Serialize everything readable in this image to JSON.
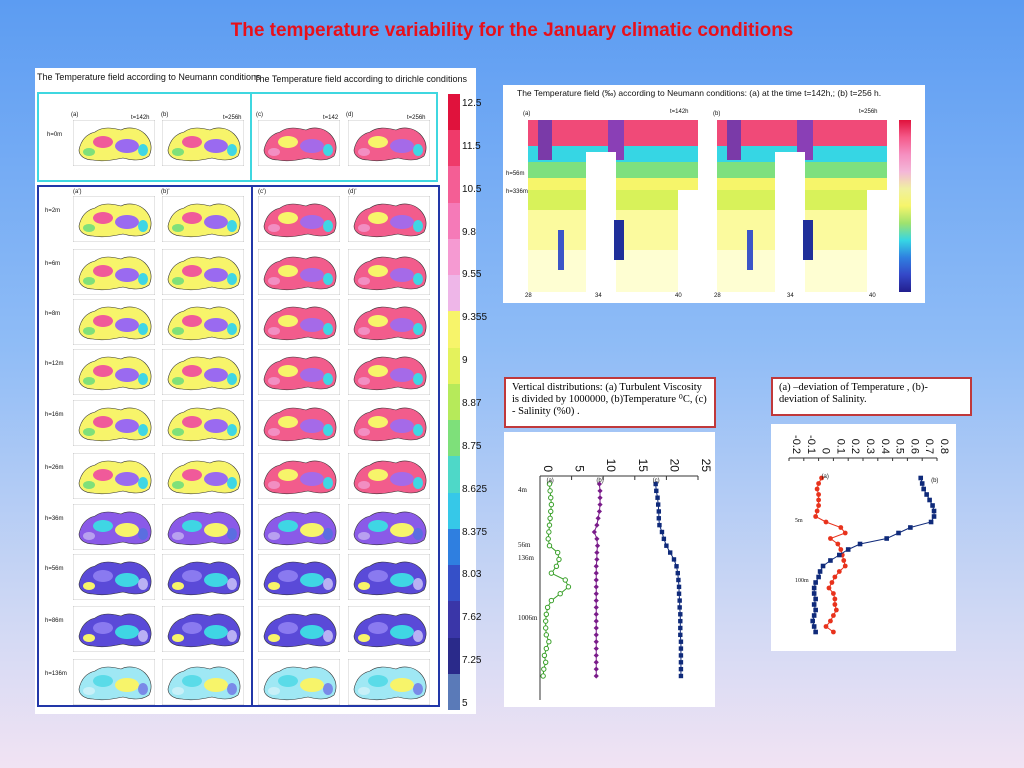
{
  "slide": {
    "title": "The temperature variability for  the January climatic conditions"
  },
  "left_figure": {
    "header_neumann": "The Temperature  field  according to Neumann conditions",
    "header_dirichle": "The Temperature  field according to dirichle  conditions",
    "time_142": "t=142h",
    "time_256": "t=256h",
    "time_142_short": "t=142",
    "panel_letters_top": [
      "(a)",
      "(b)",
      "(c)",
      "(d)"
    ],
    "panel_letters_lower": [
      "(a')",
      "(b)'",
      "(c')",
      "(d)'"
    ],
    "depths": [
      "h=0m",
      "h=2m",
      "h=6m",
      "h=8m",
      "h=12m",
      "h=16m",
      "h=26m",
      "h=36m",
      "h=56m",
      "h=86m",
      "h=136m"
    ],
    "colorbar_ticks": [
      "12.5",
      "11.5",
      "10.5",
      "9.8",
      "9.55",
      "9.355",
      "9",
      "8.87",
      "8.75",
      "8.625",
      "8.375",
      "8.03",
      "7.62",
      "7.25",
      "5"
    ]
  },
  "right_top_figure": {
    "title": "The Temperature  field (‰)  according to Neumann  conditions:  (a) at the time t=142h,; (b) t=256 h.",
    "label_a": "(a)",
    "label_b": "(b)",
    "time_a": "t=142h",
    "time_b": "t=256h",
    "depth_labels": [
      "h=56m",
      "h=336m"
    ],
    "x_ticks": [
      "28",
      "34",
      "40"
    ]
  },
  "caption_vertical": "Vertical distributions: (a) Turbulent Viscosity   is divided by 1000000, (b)Temperature ⁰C,  (c) -  Salinity (%0) .",
  "caption_deviation": "(a) –deviation of Temperature , (b)-deviation of Salinity.",
  "vertical_chart": {
    "x_ticks": [
      "0",
      "5",
      "10",
      "15",
      "20",
      "25"
    ],
    "series_labels": [
      "(a)",
      "(b)",
      "(c)"
    ],
    "depth_labels": [
      "4m",
      "56m",
      "136m",
      "1006m"
    ]
  },
  "deviation_chart": {
    "x_ticks": [
      "-0.2",
      "-0.1",
      "0",
      "0.1",
      "0.2",
      "0.3",
      "0.4",
      "0.5",
      "0.6",
      "0.7",
      "0.8"
    ],
    "series_labels": [
      "(a)",
      "(b)"
    ],
    "depth_labels": [
      "5m",
      "100m"
    ]
  },
  "chart_data": [
    {
      "type": "line",
      "title": "",
      "xlabel": "",
      "ylabel": "",
      "xlim": [
        0,
        25
      ],
      "orientation": "vertical-profile",
      "depth_index": [
        0,
        1,
        2,
        3,
        4,
        5,
        6,
        7,
        8,
        9,
        10,
        11,
        12,
        13,
        14,
        15,
        16,
        17,
        18,
        19,
        20,
        21,
        22,
        23,
        24,
        25,
        26,
        27,
        28
      ],
      "series": [
        {
          "name": "(a)",
          "color": "#3aa02a",
          "values": [
            1.5,
            1.6,
            1.7,
            1.8,
            1.7,
            1.6,
            1.5,
            1.4,
            1.3,
            1.5,
            2.8,
            3.0,
            2.6,
            1.8,
            4.0,
            4.5,
            3.2,
            1.8,
            1.2,
            1.0,
            0.9,
            0.9,
            1.0,
            1.4,
            1.0,
            0.7,
            0.9,
            0.6,
            0.5
          ]
        },
        {
          "name": "(b)",
          "color": "#7a1c8a",
          "values": [
            9.4,
            9.5,
            9.5,
            9.5,
            9.4,
            9.2,
            9.0,
            8.6,
            9.0,
            9.1,
            9.0,
            9.0,
            8.9,
            8.9,
            8.9,
            8.9,
            8.9,
            8.9,
            8.9,
            8.9,
            8.9,
            8.9,
            8.9,
            8.9,
            8.9,
            8.9,
            8.9,
            8.9,
            8.9
          ]
        },
        {
          "name": "(c)",
          "color": "#0f2a7a",
          "values": [
            18.3,
            18.4,
            18.6,
            18.7,
            18.8,
            18.8,
            18.9,
            19.3,
            19.6,
            20.0,
            20.6,
            21.2,
            21.6,
            21.8,
            21.9,
            22.0,
            22.0,
            22.1,
            22.1,
            22.2,
            22.2,
            22.2,
            22.2,
            22.3,
            22.3,
            22.3,
            22.3,
            22.3,
            22.3
          ]
        }
      ]
    },
    {
      "type": "line",
      "title": "",
      "xlabel": "",
      "ylabel": "",
      "xlim": [
        -0.2,
        0.8
      ],
      "orientation": "vertical-profile",
      "series": [
        {
          "name": "(a)",
          "color": "#e8321c",
          "values": [
            0.02,
            0.0,
            -0.01,
            0.0,
            0.0,
            0.0,
            -0.01,
            -0.02,
            0.05,
            0.15,
            0.18,
            0.08,
            0.13,
            0.15,
            0.16,
            0.17,
            0.18,
            0.14,
            0.11,
            0.09,
            0.07,
            0.1,
            0.11,
            0.11,
            0.12,
            0.1,
            0.08,
            0.05,
            0.1
          ]
        },
        {
          "name": "(b)",
          "color": "#0f2a7a",
          "values": [
            0.69,
            0.7,
            0.71,
            0.73,
            0.75,
            0.77,
            0.78,
            0.78,
            0.76,
            0.62,
            0.54,
            0.46,
            0.28,
            0.2,
            0.14,
            0.08,
            0.03,
            0.01,
            0.0,
            -0.02,
            -0.03,
            -0.03,
            -0.02,
            -0.03,
            -0.02,
            -0.03,
            -0.04,
            -0.03,
            -0.02
          ]
        }
      ]
    }
  ]
}
